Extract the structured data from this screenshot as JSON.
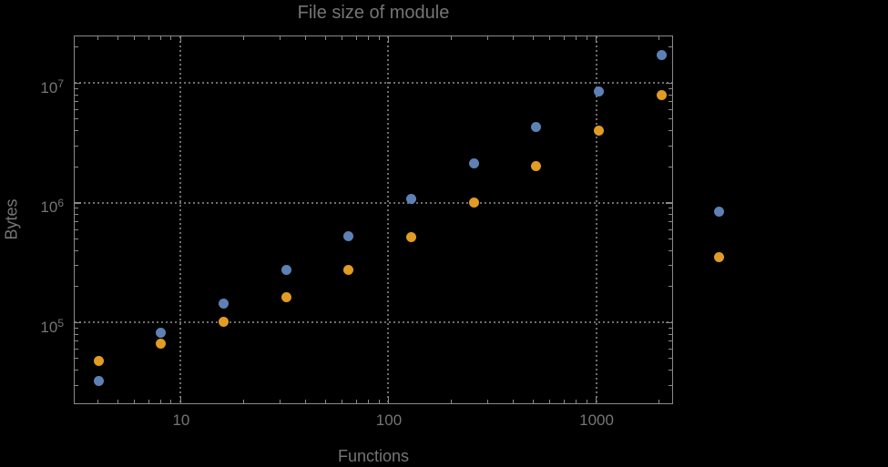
{
  "chart_data": {
    "type": "scatter",
    "title": "File size of module",
    "xlabel": "Functions",
    "ylabel": "Bytes",
    "x_scale": "log",
    "y_scale": "log",
    "grid": "dotted",
    "legend": "none",
    "plot_range_clipping": false,
    "x_range": [
      3.04,
      2334
    ],
    "y_range": [
      21000,
      25200000
    ],
    "x_major_ticks": [
      10,
      100,
      1000
    ],
    "x_major_labels": [
      "10",
      "100",
      "1000"
    ],
    "y_major_ticks": [
      100000,
      1000000,
      10000000
    ],
    "y_major_labels": [
      {
        "base": "10",
        "exp": "5"
      },
      {
        "base": "10",
        "exp": "6"
      },
      {
        "base": "10",
        "exp": "7"
      }
    ],
    "x": [
      4,
      8,
      16,
      32,
      64,
      128,
      256,
      512,
      1024,
      2048,
      3900
    ],
    "series": [
      {
        "name": "series-1-blue",
        "color": "#5e81b5",
        "values": [
          33000,
          83000,
          146000,
          280000,
          535000,
          1090000,
          2160000,
          4370000,
          8600000,
          17300000,
          850000
        ]
      },
      {
        "name": "series-2-orange",
        "color": "#e09c24",
        "values": [
          48000,
          67000,
          102000,
          164000,
          277000,
          526000,
          1010000,
          2040000,
          4060000,
          7970000,
          355000
        ]
      }
    ]
  },
  "style": {
    "background": "#000000",
    "frame_color": "#8a8a8a",
    "grid_color": "#6e6e6e",
    "text_color": "#757575",
    "point_diameter": 11
  }
}
